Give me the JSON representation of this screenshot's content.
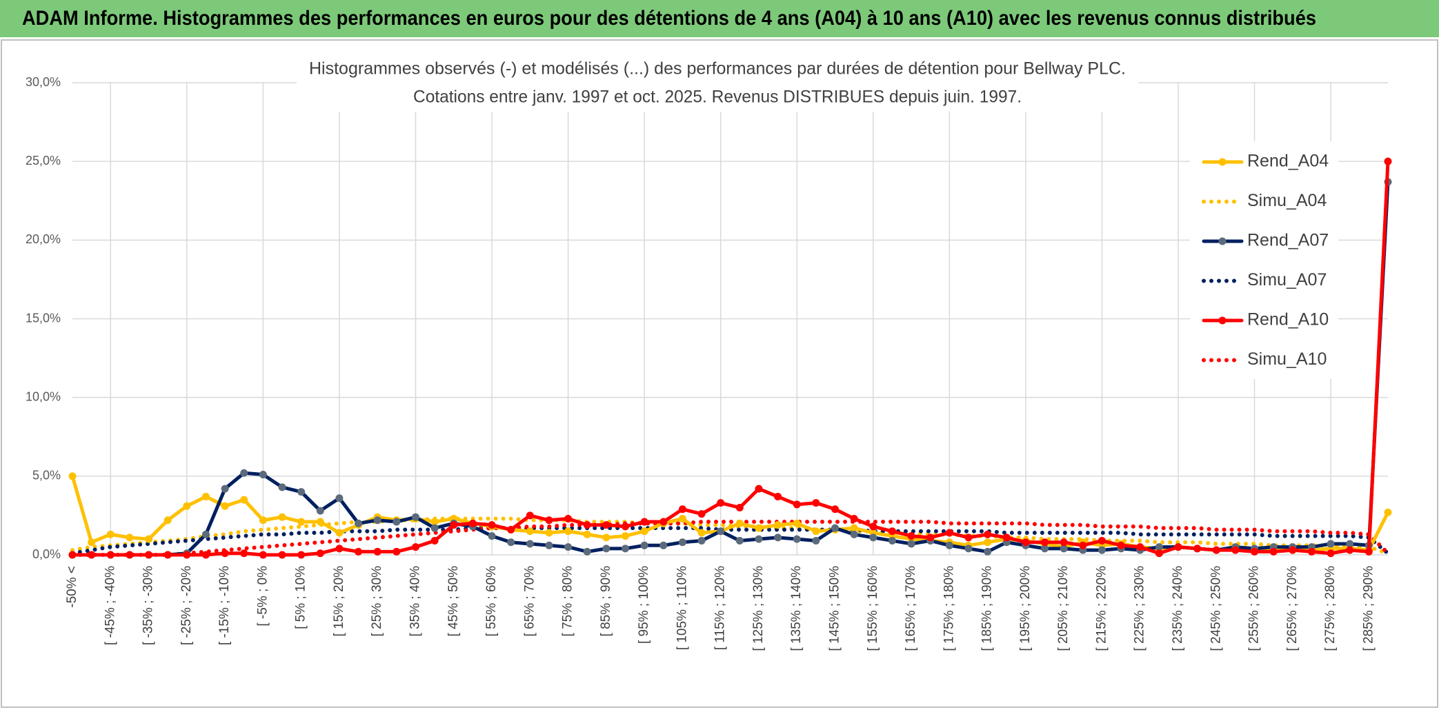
{
  "header": {
    "title": "ADAM Informe. Histogrammes des performances en euros pour des détentions de 4 ans (A04) à 10 ans (A10) avec les revenus connus distribués"
  },
  "chart_data": {
    "type": "line",
    "title": "Histogrammes observés (-) et modélisés (...) des performances par durées de détention pour Bellway PLC.",
    "subtitle": "Cotations entre janv. 1997 et oct. 2025. Revenus DISTRIBUES depuis juin. 1997.",
    "categories": [
      "-50% <",
      null,
      "[ -45% ; -40%",
      null,
      "[ -35% ; -30%",
      null,
      "[ -25% ; -20%",
      null,
      "[ -15% ; -10%",
      null,
      "[ -5% ; 0%",
      null,
      "[ 5% ; 10%",
      null,
      "[ 15% ; 20%",
      null,
      "[ 25% ; 30%",
      null,
      "[ 35% ; 40%",
      null,
      "[ 45% ; 50%",
      null,
      "[ 55% ; 60%",
      null,
      "[ 65% ; 70%",
      null,
      "[ 75% ; 80%",
      null,
      "[ 85% ; 90%",
      null,
      "[ 95% ; 100%",
      null,
      "[ 105% ; 110%",
      null,
      "[ 115% ; 120%",
      null,
      "[ 125% ; 130%",
      null,
      "[ 135% ; 140%",
      null,
      "[ 145% ; 150%",
      null,
      "[ 155% ; 160%",
      null,
      "[ 165% ; 170%",
      null,
      "[ 175% ; 180%",
      null,
      "[ 185% ; 190%",
      null,
      "[ 195% ; 200%",
      null,
      "[ 205% ; 210%",
      null,
      "[ 215% ; 220%",
      null,
      "[ 225% ; 230%",
      null,
      "[ 235% ; 240%",
      null,
      "[ 245% ; 250%",
      null,
      "[ 255% ; 260%",
      null,
      "[ 265% ; 270%",
      null,
      "[ 275% ; 280%",
      null,
      "[ 285% ; 290%",
      null
    ],
    "series": [
      {
        "name": "Rend_A04",
        "color": "#ffc000",
        "marker_color": "#ffc000",
        "style": "solid",
        "values": [
          5.0,
          0.8,
          1.3,
          1.1,
          1.0,
          2.2,
          3.1,
          3.7,
          3.1,
          3.5,
          2.2,
          2.4,
          2.1,
          2.1,
          1.4,
          1.9,
          2.4,
          2.2,
          2.3,
          2.1,
          2.3,
          2.0,
          1.8,
          1.6,
          1.5,
          1.4,
          1.5,
          1.3,
          1.1,
          1.2,
          1.5,
          2.0,
          2.3,
          1.4,
          1.5,
          2.0,
          1.7,
          1.9,
          2.0,
          1.5,
          1.6,
          1.7,
          1.4,
          1.2,
          1.0,
          0.9,
          0.8,
          0.6,
          0.8,
          1.0,
          0.9,
          0.7,
          0.5,
          0.8,
          0.6,
          0.7,
          0.5,
          0.4,
          0.5,
          0.4,
          0.3,
          0.4,
          0.3,
          0.4,
          0.3,
          0.3,
          0.4,
          0.4,
          0.3,
          2.7
        ]
      },
      {
        "name": "Simu_A04",
        "color": "#ffc000",
        "style": "dotted",
        "values": [
          0.3,
          0.5,
          0.6,
          0.7,
          0.8,
          0.9,
          1.0,
          1.2,
          1.3,
          1.5,
          1.6,
          1.7,
          1.8,
          1.9,
          2.0,
          2.1,
          2.1,
          2.2,
          2.2,
          2.3,
          2.3,
          2.3,
          2.3,
          2.3,
          2.2,
          2.2,
          2.2,
          2.1,
          2.1,
          2.1,
          2.0,
          2.0,
          2.0,
          1.9,
          1.9,
          1.8,
          1.8,
          1.7,
          1.7,
          1.6,
          1.6,
          1.5,
          1.5,
          1.4,
          1.4,
          1.3,
          1.3,
          1.2,
          1.2,
          1.1,
          1.1,
          1.0,
          1.0,
          1.0,
          0.9,
          0.9,
          0.9,
          0.8,
          0.8,
          0.8,
          0.7,
          0.7,
          0.7,
          0.6,
          0.6,
          0.6,
          0.6,
          0.5,
          0.5,
          0.1
        ]
      },
      {
        "name": "Rend_A07",
        "color": "#002060",
        "marker_color": "#5b6b7c",
        "style": "solid",
        "values": [
          0,
          0,
          0,
          0,
          0,
          0,
          0.1,
          1.3,
          4.2,
          5.2,
          5.1,
          4.3,
          4.0,
          2.8,
          3.6,
          2.0,
          2.2,
          2.1,
          2.4,
          1.7,
          2.0,
          1.8,
          1.2,
          0.8,
          0.7,
          0.6,
          0.5,
          0.2,
          0.4,
          0.4,
          0.6,
          0.6,
          0.8,
          0.9,
          1.5,
          0.9,
          1.0,
          1.1,
          1.0,
          0.9,
          1.7,
          1.3,
          1.1,
          0.9,
          0.7,
          0.9,
          0.6,
          0.4,
          0.2,
          0.8,
          0.6,
          0.4,
          0.4,
          0.3,
          0.3,
          0.4,
          0.3,
          0.5,
          0.5,
          0.4,
          0.3,
          0.5,
          0.4,
          0.5,
          0.5,
          0.5,
          0.7,
          0.7,
          0.6,
          23.7
        ]
      },
      {
        "name": "Simu_A07",
        "color": "#002060",
        "style": "dotted",
        "values": [
          0.1,
          0.3,
          0.5,
          0.6,
          0.7,
          0.8,
          0.9,
          1.0,
          1.1,
          1.2,
          1.3,
          1.3,
          1.4,
          1.4,
          1.5,
          1.5,
          1.5,
          1.6,
          1.6,
          1.6,
          1.6,
          1.7,
          1.7,
          1.7,
          1.7,
          1.7,
          1.7,
          1.7,
          1.7,
          1.7,
          1.7,
          1.7,
          1.7,
          1.7,
          1.6,
          1.6,
          1.6,
          1.6,
          1.6,
          1.6,
          1.6,
          1.6,
          1.5,
          1.5,
          1.5,
          1.5,
          1.5,
          1.5,
          1.5,
          1.4,
          1.4,
          1.4,
          1.4,
          1.4,
          1.4,
          1.4,
          1.3,
          1.3,
          1.3,
          1.3,
          1.3,
          1.3,
          1.3,
          1.2,
          1.2,
          1.2,
          1.2,
          1.2,
          1.1,
          0.1
        ]
      },
      {
        "name": "Rend_A10",
        "color": "#ff0000",
        "marker_color": "#ff0000",
        "style": "solid",
        "values": [
          0,
          0,
          0,
          0,
          0,
          0,
          0,
          0,
          0.1,
          0.1,
          0,
          0,
          0,
          0.1,
          0.4,
          0.2,
          0.2,
          0.2,
          0.5,
          0.9,
          1.9,
          2.0,
          1.9,
          1.6,
          2.5,
          2.2,
          2.3,
          1.9,
          1.9,
          1.8,
          2.1,
          2.1,
          2.9,
          2.6,
          3.3,
          3.0,
          4.2,
          3.7,
          3.2,
          3.3,
          2.9,
          2.3,
          1.8,
          1.5,
          1.2,
          1.1,
          1.4,
          1.1,
          1.3,
          1.1,
          0.8,
          0.8,
          0.8,
          0.6,
          0.9,
          0.6,
          0.5,
          0.1,
          0.5,
          0.4,
          0.3,
          0.3,
          0.2,
          0.2,
          0.3,
          0.2,
          0.1,
          0.3,
          0.2,
          25.0
        ]
      },
      {
        "name": "Simu_A10",
        "color": "#ff0000",
        "style": "dotted",
        "values": [
          0,
          0,
          0,
          0,
          0,
          0,
          0.1,
          0.2,
          0.3,
          0.4,
          0.5,
          0.6,
          0.7,
          0.8,
          0.9,
          1.0,
          1.1,
          1.2,
          1.3,
          1.4,
          1.5,
          1.6,
          1.7,
          1.7,
          1.8,
          1.8,
          1.9,
          1.9,
          1.9,
          2.0,
          2.0,
          2.0,
          2.0,
          2.1,
          2.1,
          2.1,
          2.1,
          2.1,
          2.1,
          2.1,
          2.1,
          2.1,
          2.1,
          2.1,
          2.1,
          2.1,
          2.0,
          2.0,
          2.0,
          2.0,
          2.0,
          1.9,
          1.9,
          1.9,
          1.8,
          1.8,
          1.8,
          1.7,
          1.7,
          1.7,
          1.6,
          1.6,
          1.6,
          1.5,
          1.5,
          1.5,
          1.4,
          1.4,
          1.3,
          0.1
        ]
      }
    ],
    "ylim": [
      0,
      30
    ],
    "yticks": [
      {
        "value": 0,
        "label": "0,0%"
      },
      {
        "value": 5,
        "label": "5,0%"
      },
      {
        "value": 10,
        "label": "10,0%"
      },
      {
        "value": 15,
        "label": "15,0%"
      },
      {
        "value": 20,
        "label": "20,0%"
      },
      {
        "value": 25,
        "label": "25,0%"
      },
      {
        "value": 30,
        "label": "30,0%"
      }
    ],
    "grid": true,
    "legend": "right"
  }
}
